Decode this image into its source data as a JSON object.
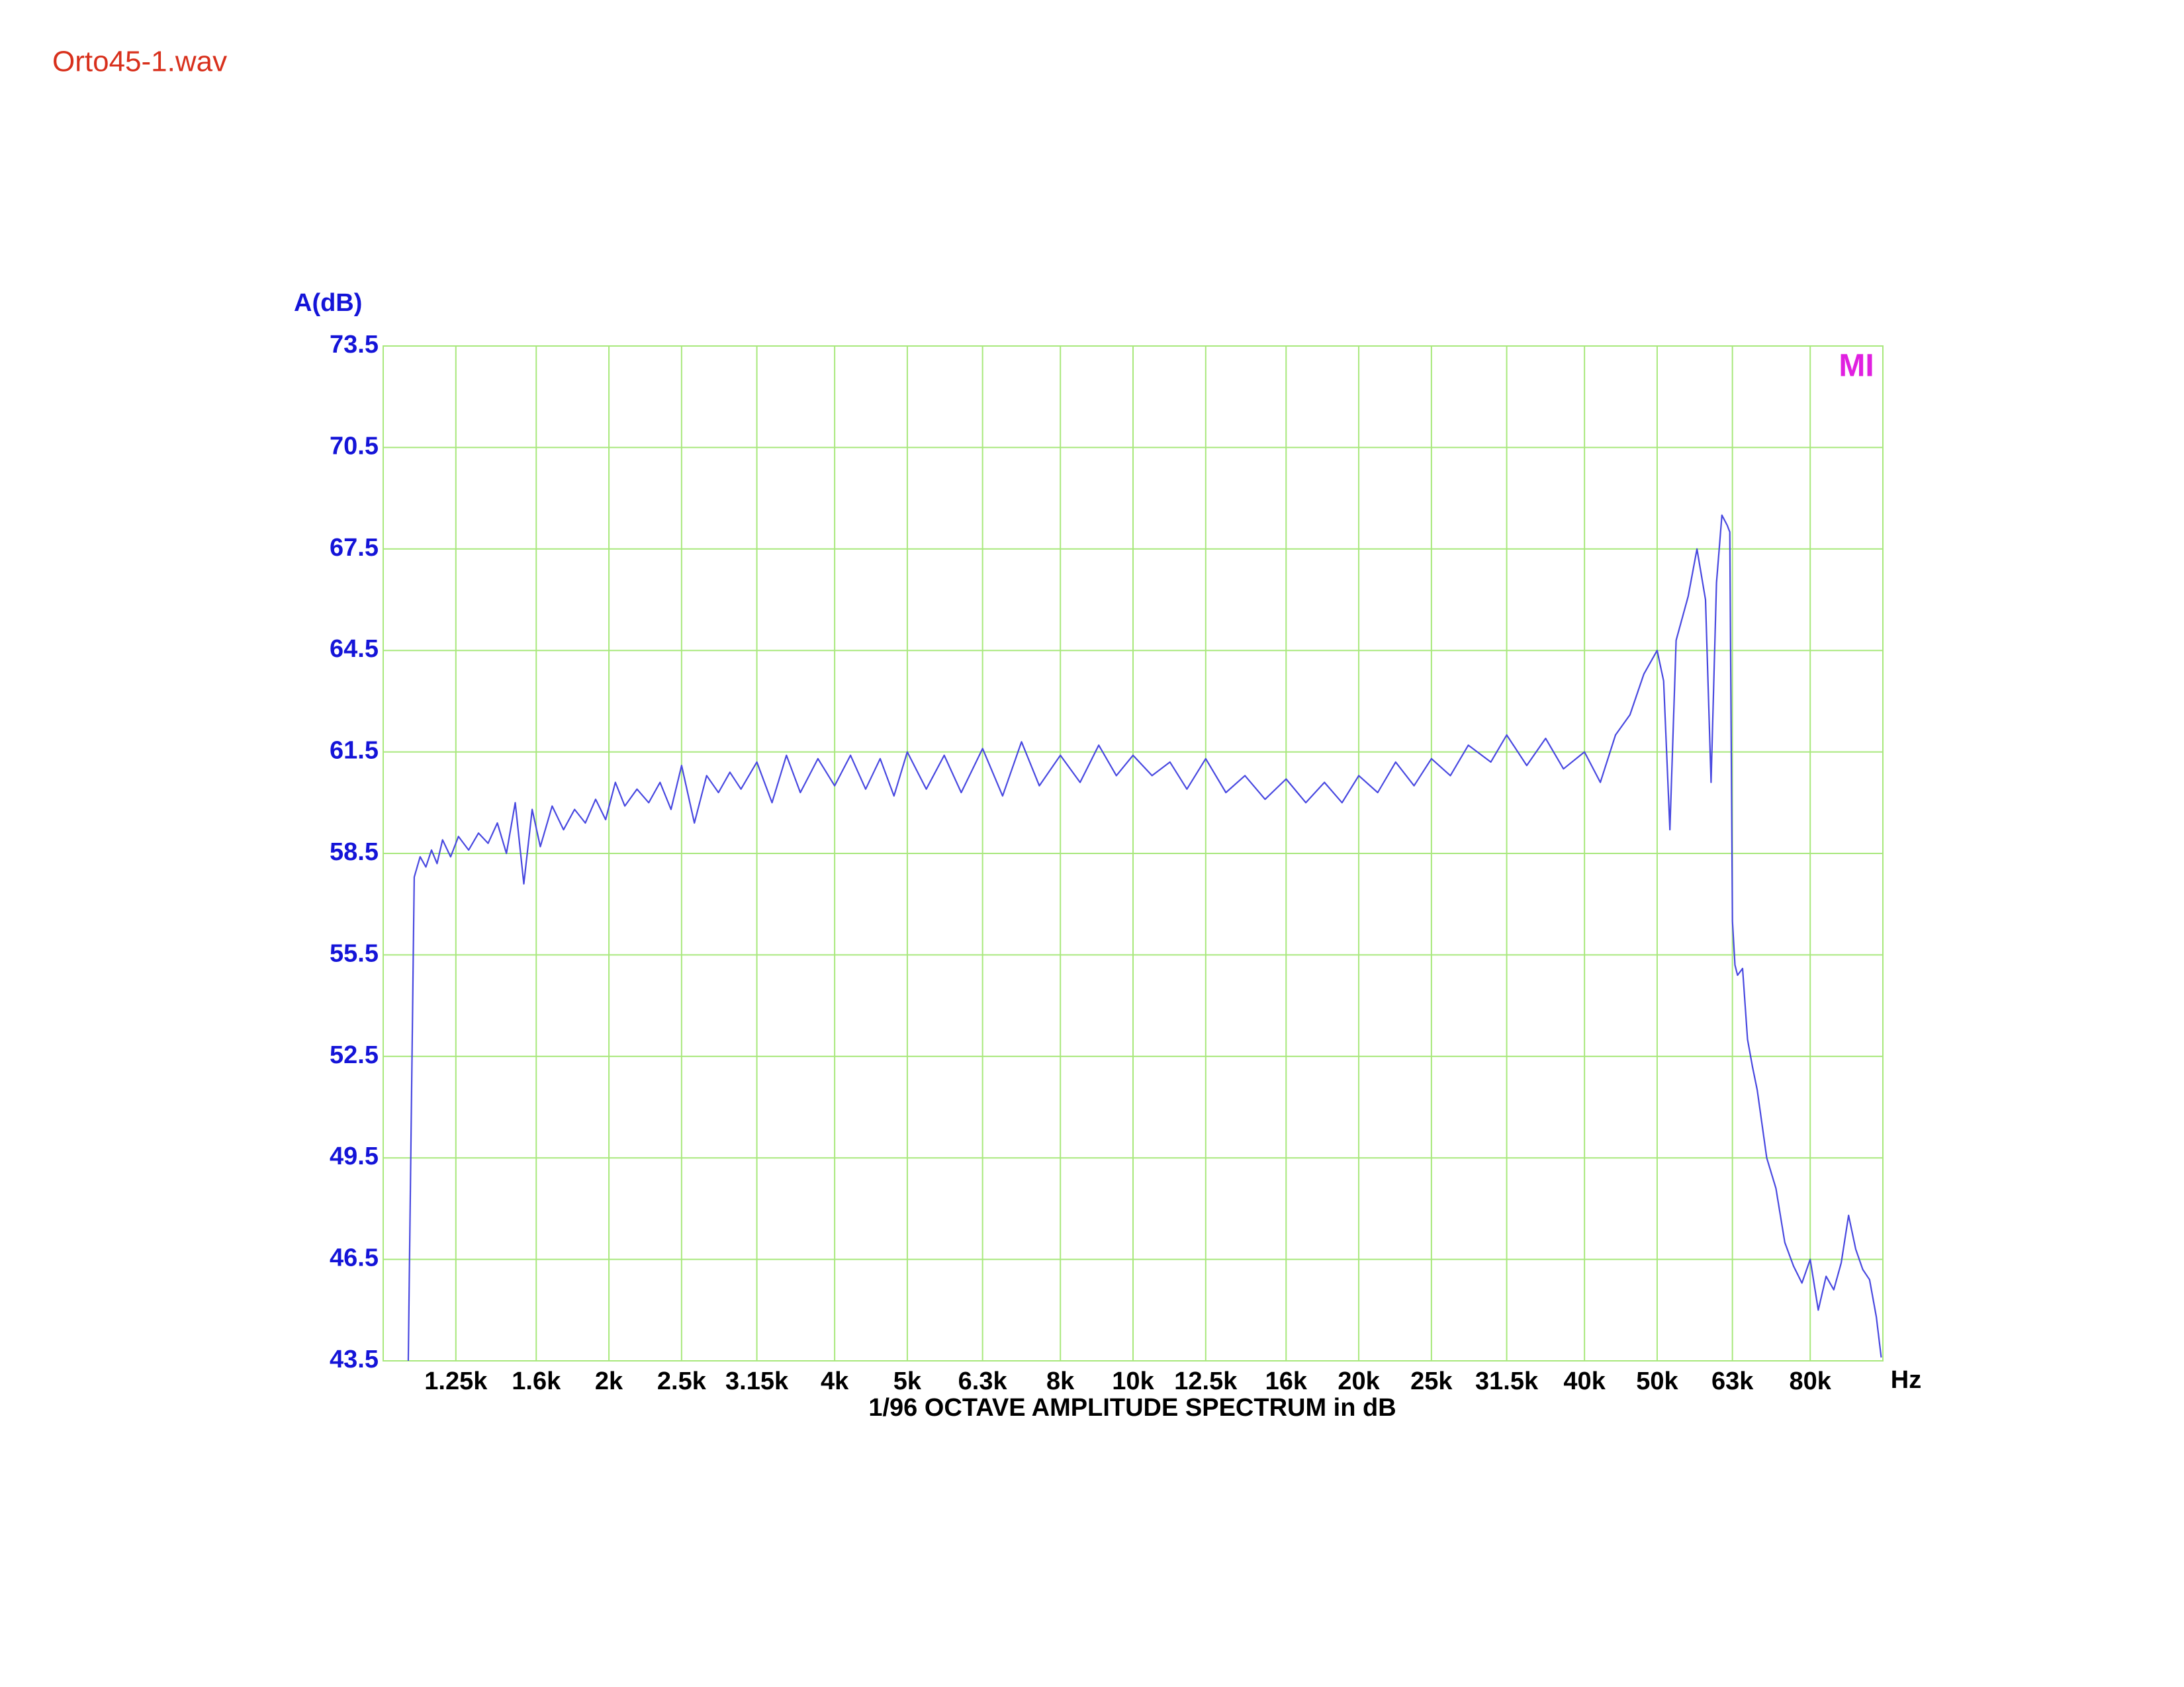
{
  "chart_data": {
    "type": "line",
    "title": "Orto45-1.wav",
    "ylabel": "A(dB)",
    "xlabel": "1/96 OCTAVE AMPLITUDE SPECTRUM in dB",
    "x_unit": "Hz",
    "logo": "MI",
    "xscale": "log",
    "grid": true,
    "color": "#4848e0",
    "grid_color": "#a8e87c",
    "title_color": "#d8301c",
    "ytick_color": "#1414d8",
    "logo_color": "#e020e0",
    "xlim": [
      1000,
      100000
    ],
    "ylim": [
      43.5,
      73.5
    ],
    "yticks": [
      43.5,
      46.5,
      49.5,
      52.5,
      55.5,
      58.5,
      61.5,
      64.5,
      67.5,
      70.5,
      73.5
    ],
    "xticks": [
      {
        "value": 1250,
        "label": "1.25k"
      },
      {
        "value": 1600,
        "label": "1.6k"
      },
      {
        "value": 2000,
        "label": "2k"
      },
      {
        "value": 2500,
        "label": "2.5k"
      },
      {
        "value": 3150,
        "label": "3.15k"
      },
      {
        "value": 4000,
        "label": "4k"
      },
      {
        "value": 5000,
        "label": "5k"
      },
      {
        "value": 6300,
        "label": "6.3k"
      },
      {
        "value": 8000,
        "label": "8k"
      },
      {
        "value": 10000,
        "label": "10k"
      },
      {
        "value": 12500,
        "label": "12.5k"
      },
      {
        "value": 16000,
        "label": "16k"
      },
      {
        "value": 20000,
        "label": "20k"
      },
      {
        "value": 25000,
        "label": "25k"
      },
      {
        "value": 31500,
        "label": "31.5k"
      },
      {
        "value": 40000,
        "label": "40k"
      },
      {
        "value": 50000,
        "label": "50k"
      },
      {
        "value": 63000,
        "label": "63k"
      },
      {
        "value": 80000,
        "label": "80k"
      }
    ],
    "x": [
      1080,
      1100,
      1120,
      1140,
      1160,
      1180,
      1200,
      1230,
      1260,
      1300,
      1340,
      1380,
      1420,
      1460,
      1500,
      1540,
      1580,
      1620,
      1680,
      1740,
      1800,
      1860,
      1920,
      1980,
      2040,
      2100,
      2180,
      2260,
      2340,
      2420,
      2500,
      2600,
      2700,
      2800,
      2900,
      3000,
      3150,
      3300,
      3450,
      3600,
      3800,
      4000,
      4200,
      4400,
      4600,
      4800,
      5000,
      5300,
      5600,
      5900,
      6300,
      6700,
      7100,
      7500,
      8000,
      8500,
      9000,
      9500,
      10000,
      10600,
      11200,
      11800,
      12500,
      13300,
      14100,
      15000,
      16000,
      17000,
      18000,
      19000,
      20000,
      21200,
      22400,
      23700,
      25000,
      26500,
      28000,
      30000,
      31500,
      33500,
      35500,
      37500,
      40000,
      42000,
      44000,
      46000,
      48000,
      50000,
      51000,
      52000,
      53000,
      55000,
      56500,
      58000,
      59000,
      60000,
      61000,
      62000,
      62500,
      63000,
      63500,
      64000,
      65000,
      66000,
      67000,
      68000,
      70000,
      72000,
      74000,
      76000,
      78000,
      80000,
      82000,
      84000,
      86000,
      88000,
      90000,
      92000,
      94000,
      96000,
      98000,
      99500
    ],
    "values": [
      43.5,
      57.8,
      58.4,
      58.1,
      58.6,
      58.2,
      58.9,
      58.4,
      59.0,
      58.6,
      59.1,
      58.8,
      59.4,
      58.5,
      60.0,
      57.6,
      59.8,
      58.7,
      59.9,
      59.2,
      59.8,
      59.4,
      60.1,
      59.5,
      60.6,
      59.9,
      60.4,
      60.0,
      60.6,
      59.8,
      61.1,
      59.4,
      60.8,
      60.3,
      60.9,
      60.4,
      61.2,
      60.0,
      61.4,
      60.3,
      61.3,
      60.5,
      61.4,
      60.4,
      61.3,
      60.2,
      61.5,
      60.4,
      61.4,
      60.3,
      61.6,
      60.2,
      61.8,
      60.5,
      61.4,
      60.6,
      61.7,
      60.8,
      61.4,
      60.8,
      61.2,
      60.4,
      61.3,
      60.3,
      60.8,
      60.1,
      60.7,
      60.0,
      60.6,
      60.0,
      60.8,
      60.3,
      61.2,
      60.5,
      61.3,
      60.8,
      61.7,
      61.2,
      62.0,
      61.1,
      61.9,
      61.0,
      61.5,
      60.6,
      62.0,
      62.6,
      63.8,
      64.5,
      63.6,
      59.2,
      64.8,
      66.1,
      67.5,
      66.0,
      60.6,
      66.5,
      68.5,
      68.2,
      68.0,
      56.5,
      55.2,
      54.9,
      55.1,
      53.0,
      52.2,
      51.5,
      49.5,
      48.6,
      47.0,
      46.3,
      45.8,
      46.5,
      45.0,
      46.0,
      45.6,
      46.4,
      47.8,
      46.8,
      46.2,
      45.9,
      44.8,
      43.6
    ]
  }
}
